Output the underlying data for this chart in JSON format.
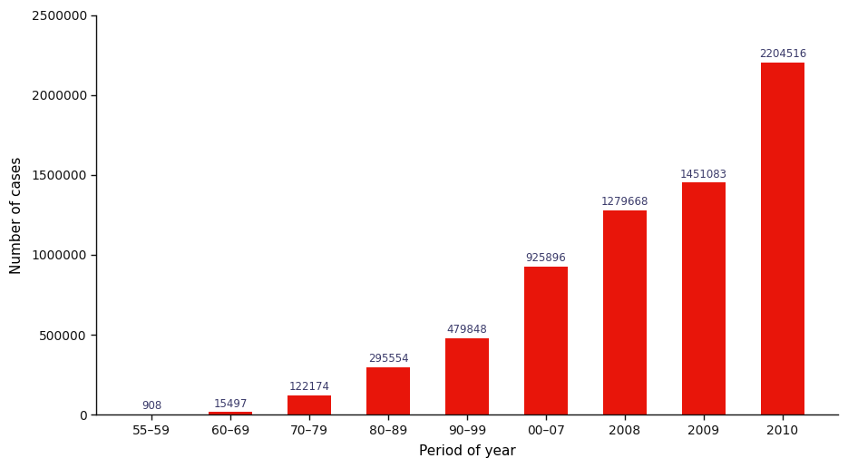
{
  "categories": [
    "55–59",
    "60–69",
    "70–79",
    "80–89",
    "90–99",
    "00–07",
    "2008",
    "2009",
    "2010"
  ],
  "values": [
    908,
    15497,
    122174,
    295554,
    479848,
    925896,
    1279668,
    1451083,
    2204516
  ],
  "bar_color": "#e8150a",
  "xlabel": "Period of year",
  "ylabel": "Number of cases",
  "ylim": [
    0,
    2500000
  ],
  "yticks": [
    0,
    500000,
    1000000,
    1500000,
    2000000,
    2500000
  ],
  "label_color": "#3a3a6a",
  "label_fontsize": 8.5,
  "xlabel_fontsize": 11,
  "ylabel_fontsize": 11,
  "tick_fontsize": 10,
  "background_color": "#ffffff",
  "bar_width": 0.55,
  "spine_color": "#111111",
  "tick_color": "#111111"
}
